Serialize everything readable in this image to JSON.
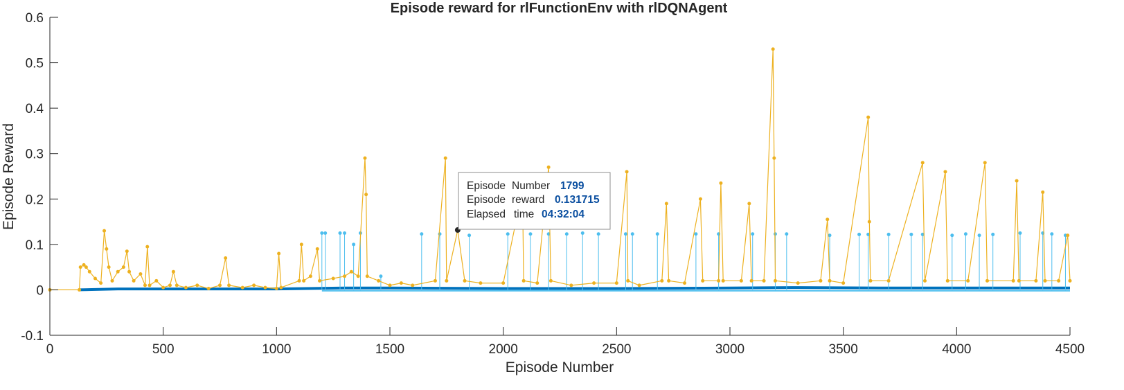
{
  "colors": {
    "avg_reward": "#0072bd",
    "q0": "#4dbeee",
    "episode_reward": "#edb120",
    "axis": "#262626"
  },
  "chart_data": {
    "type": "line",
    "title": "Episode reward for rlFunctionEnv with rlDQNAgent",
    "xlabel": "Episode Number",
    "ylabel": "Episode Reward",
    "xlim": [
      0,
      4500
    ],
    "ylim": [
      -0.1,
      0.6
    ],
    "xticks": [
      0,
      500,
      1000,
      1500,
      2000,
      2500,
      3000,
      3500,
      4000,
      4500
    ],
    "yticks": [
      -0.1,
      0,
      0.1,
      0.2,
      0.3,
      0.4,
      0.5,
      0.6
    ],
    "grid": false,
    "series": [
      {
        "role": "average-reward",
        "color": "#0072bd",
        "points": [
          [
            130,
            0
          ],
          [
            300,
            0.002
          ],
          [
            600,
            0.002
          ],
          [
            1000,
            0.002
          ],
          [
            1300,
            0.004
          ],
          [
            1500,
            0.004
          ],
          [
            2000,
            0.003
          ],
          [
            2500,
            0.003
          ],
          [
            3000,
            0.004
          ],
          [
            3300,
            0.005
          ],
          [
            3700,
            0.004
          ],
          [
            4000,
            0.004
          ],
          [
            4300,
            0.004
          ],
          [
            4500,
            0.004
          ]
        ]
      },
      {
        "role": "episode-q0",
        "color": "#4dbeee",
        "spikes": [
          [
            1200,
            0.125
          ],
          [
            1215,
            0.125
          ],
          [
            1280,
            0.125
          ],
          [
            1300,
            0.125
          ],
          [
            1340,
            0.1
          ],
          [
            1370,
            0.125
          ],
          [
            1460,
            0.03
          ],
          [
            1640,
            0.123
          ],
          [
            1720,
            0.123
          ],
          [
            1850,
            0.12
          ],
          [
            2020,
            0.123
          ],
          [
            2120,
            0.123
          ],
          [
            2200,
            0.123
          ],
          [
            2280,
            0.123
          ],
          [
            2350,
            0.125
          ],
          [
            2420,
            0.123
          ],
          [
            2540,
            0.123
          ],
          [
            2570,
            0.123
          ],
          [
            2680,
            0.123
          ],
          [
            2850,
            0.123
          ],
          [
            2950,
            0.123
          ],
          [
            3100,
            0.123
          ],
          [
            3200,
            0.123
          ],
          [
            3250,
            0.123
          ],
          [
            3440,
            0.12
          ],
          [
            3570,
            0.122
          ],
          [
            3610,
            0.122
          ],
          [
            3700,
            0.122
          ],
          [
            3800,
            0.122
          ],
          [
            3850,
            0.122
          ],
          [
            3980,
            0.12
          ],
          [
            4040,
            0.123
          ],
          [
            4100,
            0.12
          ],
          [
            4160,
            0.122
          ],
          [
            4280,
            0.125
          ],
          [
            4380,
            0.125
          ],
          [
            4420,
            0.123
          ],
          [
            4480,
            0.12
          ]
        ]
      },
      {
        "role": "episode-reward",
        "color": "#edb120",
        "points": [
          [
            0,
            0
          ],
          [
            130,
            0
          ],
          [
            135,
            0.05
          ],
          [
            150,
            0.055
          ],
          [
            160,
            0.05
          ],
          [
            175,
            0.04
          ],
          [
            200,
            0.025
          ],
          [
            225,
            0.015
          ],
          [
            240,
            0.13
          ],
          [
            250,
            0.09
          ],
          [
            260,
            0.05
          ],
          [
            275,
            0.02
          ],
          [
            300,
            0.04
          ],
          [
            325,
            0.05
          ],
          [
            340,
            0.085
          ],
          [
            350,
            0.04
          ],
          [
            370,
            0.02
          ],
          [
            400,
            0.035
          ],
          [
            420,
            0.01
          ],
          [
            430,
            0.095
          ],
          [
            440,
            0.01
          ],
          [
            470,
            0.02
          ],
          [
            500,
            0.005
          ],
          [
            530,
            0.01
          ],
          [
            545,
            0.04
          ],
          [
            560,
            0.01
          ],
          [
            600,
            0.005
          ],
          [
            650,
            0.01
          ],
          [
            700,
            0.003
          ],
          [
            750,
            0.01
          ],
          [
            775,
            0.07
          ],
          [
            790,
            0.01
          ],
          [
            850,
            0.005
          ],
          [
            900,
            0.01
          ],
          [
            950,
            0.005
          ],
          [
            1000,
            0.003
          ],
          [
            1010,
            0.08
          ],
          [
            1020,
            0.005
          ],
          [
            1100,
            0.02
          ],
          [
            1110,
            0.1
          ],
          [
            1120,
            0.02
          ],
          [
            1150,
            0.03
          ],
          [
            1180,
            0.09
          ],
          [
            1190,
            0.02
          ],
          [
            1250,
            0.025
          ],
          [
            1300,
            0.03
          ],
          [
            1330,
            0.04
          ],
          [
            1360,
            0.03
          ],
          [
            1390,
            0.29
          ],
          [
            1395,
            0.21
          ],
          [
            1400,
            0.03
          ],
          [
            1450,
            0.02
          ],
          [
            1500,
            0.01
          ],
          [
            1550,
            0.015
          ],
          [
            1600,
            0.01
          ],
          [
            1700,
            0.02
          ],
          [
            1745,
            0.29
          ],
          [
            1750,
            0.02
          ],
          [
            1799,
            0.131715
          ],
          [
            1830,
            0.02
          ],
          [
            1900,
            0.015
          ],
          [
            2000,
            0.015
          ],
          [
            2085,
            0.22
          ],
          [
            2090,
            0.02
          ],
          [
            2150,
            0.015
          ],
          [
            2200,
            0.27
          ],
          [
            2210,
            0.02
          ],
          [
            2300,
            0.01
          ],
          [
            2400,
            0.015
          ],
          [
            2500,
            0.015
          ],
          [
            2545,
            0.26
          ],
          [
            2550,
            0.02
          ],
          [
            2600,
            0.01
          ],
          [
            2700,
            0.02
          ],
          [
            2720,
            0.19
          ],
          [
            2730,
            0.02
          ],
          [
            2800,
            0.015
          ],
          [
            2870,
            0.2
          ],
          [
            2880,
            0.02
          ],
          [
            2950,
            0.02
          ],
          [
            2960,
            0.235
          ],
          [
            2970,
            0.02
          ],
          [
            3050,
            0.02
          ],
          [
            3085,
            0.19
          ],
          [
            3095,
            0.02
          ],
          [
            3150,
            0.02
          ],
          [
            3190,
            0.53
          ],
          [
            3195,
            0.29
          ],
          [
            3200,
            0.02
          ],
          [
            3300,
            0.015
          ],
          [
            3400,
            0.02
          ],
          [
            3430,
            0.155
          ],
          [
            3440,
            0.02
          ],
          [
            3500,
            0.015
          ],
          [
            3610,
            0.38
          ],
          [
            3615,
            0.15
          ],
          [
            3620,
            0.02
          ],
          [
            3700,
            0.02
          ],
          [
            3850,
            0.28
          ],
          [
            3860,
            0.02
          ],
          [
            3950,
            0.26
          ],
          [
            3960,
            0.02
          ],
          [
            4050,
            0.02
          ],
          [
            4125,
            0.28
          ],
          [
            4135,
            0.02
          ],
          [
            4250,
            0.02
          ],
          [
            4265,
            0.24
          ],
          [
            4275,
            0.02
          ],
          [
            4350,
            0.02
          ],
          [
            4380,
            0.215
          ],
          [
            4390,
            0.02
          ],
          [
            4450,
            0.02
          ],
          [
            4490,
            0.12
          ],
          [
            4500,
            0.02
          ]
        ]
      }
    ],
    "datatip": {
      "x": 1799,
      "y": 0.131715
    }
  },
  "datatip": {
    "row1_key1": "Episode",
    "row1_key2": "Number",
    "row1_val": "1799",
    "row2_key1": "Episode",
    "row2_key2": "reward",
    "row2_val": "0.131715",
    "row3_key1": "Elapsed",
    "row3_key2": "time",
    "row3_val": "04:32:04"
  }
}
